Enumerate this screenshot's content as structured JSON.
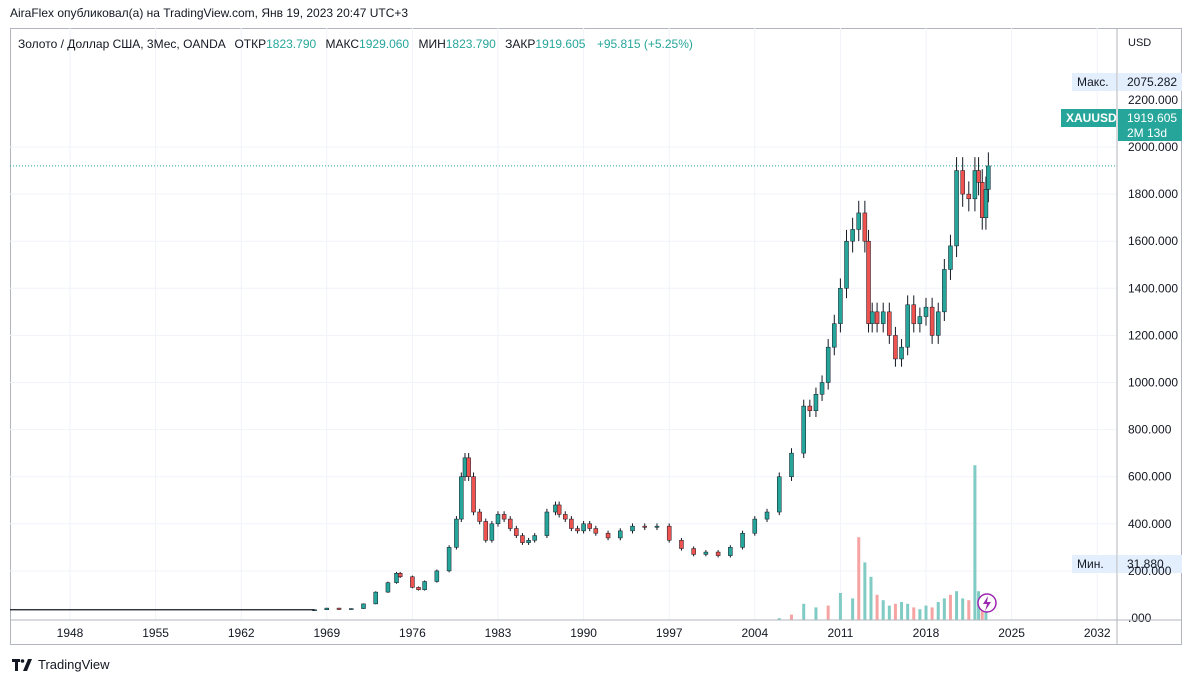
{
  "header": {
    "publisher": "AiraFlex опубликовал(а) на TradingView.com, Янв 19, 2023 20:47 UTC+3"
  },
  "legend": {
    "symbol": "Золото / Доллар США, 3Мес, OANDA",
    "open_label": "ОТКР",
    "open": "1823.790",
    "high_label": "МАКС",
    "high": "1929.060",
    "low_label": "МИН",
    "low": "1823.790",
    "close_label": "ЗАКР",
    "close": "1919.605",
    "change": "+95.815 (+5.25%)"
  },
  "footer": {
    "brand": "TradingView"
  },
  "colors": {
    "up": "#26a69a",
    "down": "#ef5350",
    "volume_up": "#80cbc4",
    "volume_down": "#f5a3a3",
    "grid": "#f0f3fa",
    "price_label_bg": "#26a69a",
    "muted_label_bg": "#e3effd"
  },
  "chart_data": {
    "type": "candlestick",
    "currency": "USD",
    "ylim": [
      -50,
      2260
    ],
    "xlim": [
      1942,
      2036
    ],
    "y_ticks": [
      "200.000",
      "400.000",
      "600.000",
      "800.000",
      "1000.000",
      "1200.000",
      "1400.000",
      "1600.000",
      "1800.000",
      "2000.000"
    ],
    "y_tick_values": [
      200,
      400,
      600,
      800,
      1000,
      1200,
      1400,
      1600,
      1800,
      2000
    ],
    "y_ticks_partial": [
      "2200.000",
      ".000"
    ],
    "y_ticks_partial_values": [
      2200,
      0
    ],
    "x_ticks": [
      "1948",
      "1955",
      "1962",
      "1969",
      "1976",
      "1983",
      "1990",
      "1997",
      "2004",
      "2011",
      "2018",
      "2025",
      "2032"
    ],
    "x_tick_values": [
      1948,
      1955,
      1962,
      1969,
      1976,
      1983,
      1990,
      1997,
      2004,
      2011,
      2018,
      2025,
      2032
    ],
    "labels": {
      "max": {
        "text": "Макс.",
        "value": "2075.282"
      },
      "min": {
        "text": "Мин.",
        "value": "31.880"
      },
      "current": {
        "symbol": "XAUUSD",
        "value": "1919.605",
        "countdown": "2M 13d"
      }
    },
    "price_series": [
      [
        1942.0,
        35
      ],
      [
        1968.0,
        35
      ],
      [
        1969.0,
        42
      ],
      [
        1970.0,
        36
      ],
      [
        1971.0,
        40
      ],
      [
        1972.0,
        60
      ],
      [
        1973.0,
        110
      ],
      [
        1974.0,
        150
      ],
      [
        1974.7,
        190
      ],
      [
        1975.0,
        175
      ],
      [
        1976.0,
        130
      ],
      [
        1976.5,
        120
      ],
      [
        1977.0,
        155
      ],
      [
        1978.0,
        200
      ],
      [
        1979.0,
        300
      ],
      [
        1979.6,
        420
      ],
      [
        1980.0,
        600
      ],
      [
        1980.3,
        680
      ],
      [
        1980.6,
        600
      ],
      [
        1981.0,
        450
      ],
      [
        1981.5,
        410
      ],
      [
        1982.0,
        330
      ],
      [
        1982.5,
        400
      ],
      [
        1983.0,
        440
      ],
      [
        1983.5,
        420
      ],
      [
        1984.0,
        380
      ],
      [
        1984.5,
        350
      ],
      [
        1985.0,
        320
      ],
      [
        1985.5,
        330
      ],
      [
        1986.0,
        350
      ],
      [
        1987.0,
        450
      ],
      [
        1987.7,
        480
      ],
      [
        1988.0,
        440
      ],
      [
        1988.5,
        420
      ],
      [
        1989.0,
        380
      ],
      [
        1989.5,
        370
      ],
      [
        1990.0,
        400
      ],
      [
        1990.5,
        380
      ],
      [
        1991.0,
        360
      ],
      [
        1992.0,
        340
      ],
      [
        1993.0,
        370
      ],
      [
        1994.0,
        390
      ],
      [
        1995.0,
        385
      ],
      [
        1996.0,
        390
      ],
      [
        1997.0,
        330
      ],
      [
        1998.0,
        295
      ],
      [
        1999.0,
        270
      ],
      [
        2000.0,
        280
      ],
      [
        2001.0,
        265
      ],
      [
        2002.0,
        300
      ],
      [
        2003.0,
        360
      ],
      [
        2004.0,
        420
      ],
      [
        2005.0,
        450
      ],
      [
        2006.0,
        600
      ],
      [
        2007.0,
        700
      ],
      [
        2008.0,
        900
      ],
      [
        2008.5,
        880
      ],
      [
        2009.0,
        950
      ],
      [
        2009.5,
        1000
      ],
      [
        2010.0,
        1150
      ],
      [
        2010.5,
        1250
      ],
      [
        2011.0,
        1400
      ],
      [
        2011.5,
        1600
      ],
      [
        2012.0,
        1650
      ],
      [
        2012.5,
        1720
      ],
      [
        2013.0,
        1600
      ],
      [
        2013.3,
        1250
      ],
      [
        2013.6,
        1300
      ],
      [
        2014.0,
        1250
      ],
      [
        2014.5,
        1300
      ],
      [
        2015.0,
        1200
      ],
      [
        2015.5,
        1100
      ],
      [
        2016.0,
        1150
      ],
      [
        2016.5,
        1330
      ],
      [
        2017.0,
        1250
      ],
      [
        2017.5,
        1280
      ],
      [
        2018.0,
        1320
      ],
      [
        2018.5,
        1200
      ],
      [
        2019.0,
        1300
      ],
      [
        2019.5,
        1480
      ],
      [
        2020.0,
        1580
      ],
      [
        2020.5,
        1900
      ],
      [
        2021.0,
        1800
      ],
      [
        2021.5,
        1780
      ],
      [
        2022.0,
        1900
      ],
      [
        2022.3,
        1850
      ],
      [
        2022.6,
        1700
      ],
      [
        2022.9,
        1820
      ],
      [
        2023.1,
        1919.605
      ]
    ],
    "volume_series": [
      [
        2006.0,
        5
      ],
      [
        2007.0,
        15
      ],
      [
        2008.0,
        45
      ],
      [
        2009.0,
        35
      ],
      [
        2010.0,
        40
      ],
      [
        2011.0,
        75
      ],
      [
        2012.0,
        60
      ],
      [
        2012.5,
        230
      ],
      [
        2013.0,
        160
      ],
      [
        2013.5,
        120
      ],
      [
        2014.0,
        70
      ],
      [
        2014.5,
        55
      ],
      [
        2015.0,
        40
      ],
      [
        2015.5,
        45
      ],
      [
        2016.0,
        50
      ],
      [
        2016.5,
        45
      ],
      [
        2017.0,
        35
      ],
      [
        2017.5,
        30
      ],
      [
        2018.0,
        40
      ],
      [
        2018.5,
        35
      ],
      [
        2019.0,
        50
      ],
      [
        2019.5,
        60
      ],
      [
        2020.0,
        70
      ],
      [
        2020.5,
        80
      ],
      [
        2021.0,
        60
      ],
      [
        2021.5,
        55
      ],
      [
        2022.0,
        430
      ],
      [
        2022.3,
        80
      ],
      [
        2022.6,
        50
      ],
      [
        2022.9,
        30
      ]
    ]
  }
}
